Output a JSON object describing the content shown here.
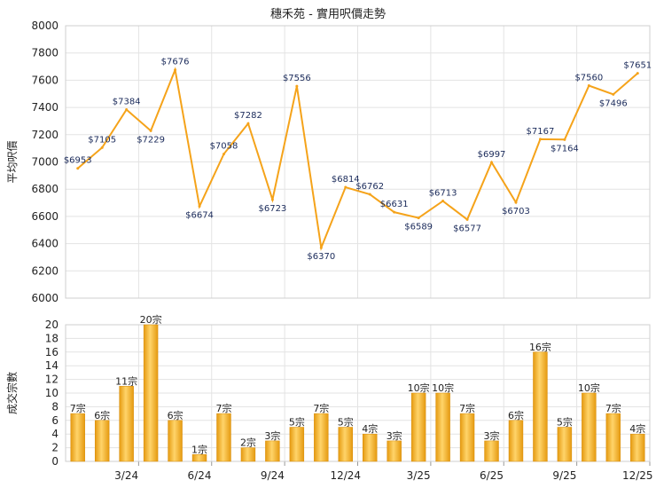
{
  "title": "穗禾苑 - 實用呎價走勢",
  "chart_data": [
    {
      "type": "line",
      "ylabel": "平均呎價",
      "ylim": [
        6000,
        8000
      ],
      "yticks": [
        6000,
        6200,
        6400,
        6600,
        6800,
        7000,
        7200,
        7400,
        7600,
        7800,
        8000
      ],
      "grid": true,
      "line_color": "#f5a31a",
      "series": [
        {
          "values": [
            6953,
            7105,
            7384,
            7229,
            7676,
            6674,
            7058,
            7282,
            6723,
            7556,
            6370,
            6814,
            6762,
            6631,
            6589,
            6713,
            6577,
            6997,
            6703,
            7167,
            7164,
            7560,
            7496,
            7651
          ],
          "labels": [
            "$6953",
            "$7105",
            "$7384",
            "$7229",
            "$7676",
            "$6674",
            "$7058",
            "$7282",
            "$6723",
            "$7556",
            "$6370",
            "$6814",
            "$6762",
            "$6631",
            "$6589",
            "$6713",
            "$6577",
            "$6997",
            "$6703",
            "$7167",
            "$7164",
            "$7560",
            "$7496",
            "$7651"
          ]
        }
      ]
    },
    {
      "type": "bar",
      "ylabel": "成交宗數",
      "ylim": [
        0,
        20
      ],
      "yticks": [
        0,
        2,
        4,
        6,
        8,
        10,
        12,
        14,
        16,
        18,
        20
      ],
      "grid": true,
      "bar_color": "#f5a31a",
      "x_tick_labels": [
        {
          "index": 2,
          "label": "3/24"
        },
        {
          "index": 5,
          "label": "6/24"
        },
        {
          "index": 8,
          "label": "9/24"
        },
        {
          "index": 11,
          "label": "12/24"
        },
        {
          "index": 14,
          "label": "3/25"
        },
        {
          "index": 17,
          "label": "6/25"
        },
        {
          "index": 20,
          "label": "9/25"
        },
        {
          "index": 23,
          "label": "12/25"
        }
      ],
      "series": [
        {
          "values": [
            7,
            6,
            11,
            20,
            6,
            1,
            7,
            2,
            3,
            5,
            7,
            5,
            4,
            3,
            10,
            10,
            7,
            3,
            6,
            16,
            5,
            10,
            7,
            4
          ],
          "labels": [
            "7宗",
            "6宗",
            "11宗",
            "20宗",
            "6宗",
            "1宗",
            "7宗",
            "2宗",
            "3宗",
            "5宗",
            "7宗",
            "5宗",
            "4宗",
            "3宗",
            "10宗",
            "10宗",
            "7宗",
            "3宗",
            "6宗",
            "16宗",
            "5宗",
            "10宗",
            "7宗",
            "4宗"
          ]
        }
      ]
    }
  ]
}
